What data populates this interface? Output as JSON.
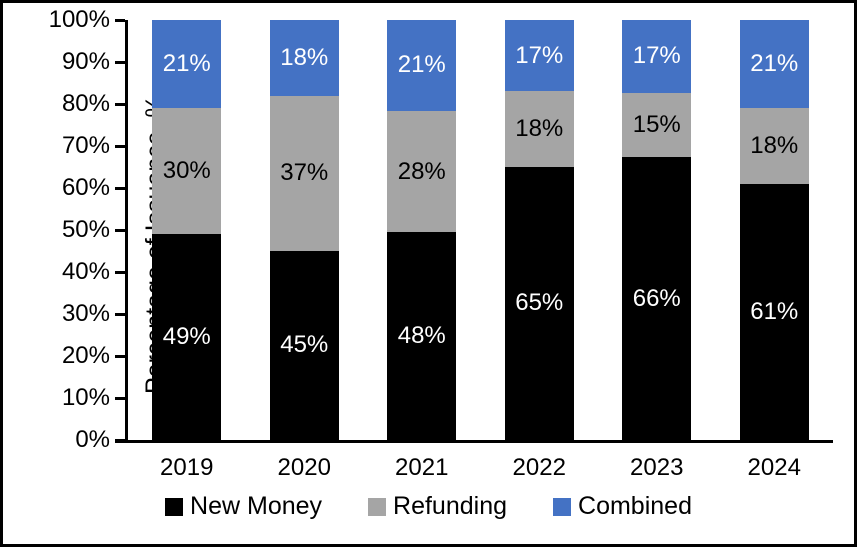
{
  "chart_data": {
    "type": "bar",
    "stacked": true,
    "normalized_to": 100,
    "title": "",
    "xlabel": "",
    "ylabel": "Percentage of Issuance, %",
    "ylim": [
      0,
      100
    ],
    "yticks": [
      "0%",
      "10%",
      "20%",
      "30%",
      "40%",
      "50%",
      "60%",
      "70%",
      "80%",
      "90%",
      "100%"
    ],
    "grid": false,
    "legend_position": "bottom",
    "categories": [
      "2019",
      "2020",
      "2021",
      "2022",
      "2023",
      "2024"
    ],
    "series": [
      {
        "name": "New Money",
        "color": "#000000",
        "label_color": "#ffffff",
        "values": [
          49,
          45,
          48,
          65,
          66,
          61
        ],
        "labels": [
          "49%",
          "45%",
          "48%",
          "65%",
          "66%",
          "61%"
        ]
      },
      {
        "name": "Refunding",
        "color": "#A5A5A5",
        "label_color": "#000000",
        "values": [
          30,
          37,
          28,
          18,
          15,
          18
        ],
        "labels": [
          "30%",
          "37%",
          "28%",
          "18%",
          "15%",
          "18%"
        ]
      },
      {
        "name": "Combined",
        "color": "#4472C4",
        "label_color": "#ffffff",
        "values": [
          21,
          18,
          21,
          17,
          17,
          21
        ],
        "labels": [
          "21%",
          "18%",
          "21%",
          "17%",
          "17%",
          "21%"
        ]
      }
    ],
    "axis_color": "#000000",
    "background_color": "#ffffff"
  }
}
